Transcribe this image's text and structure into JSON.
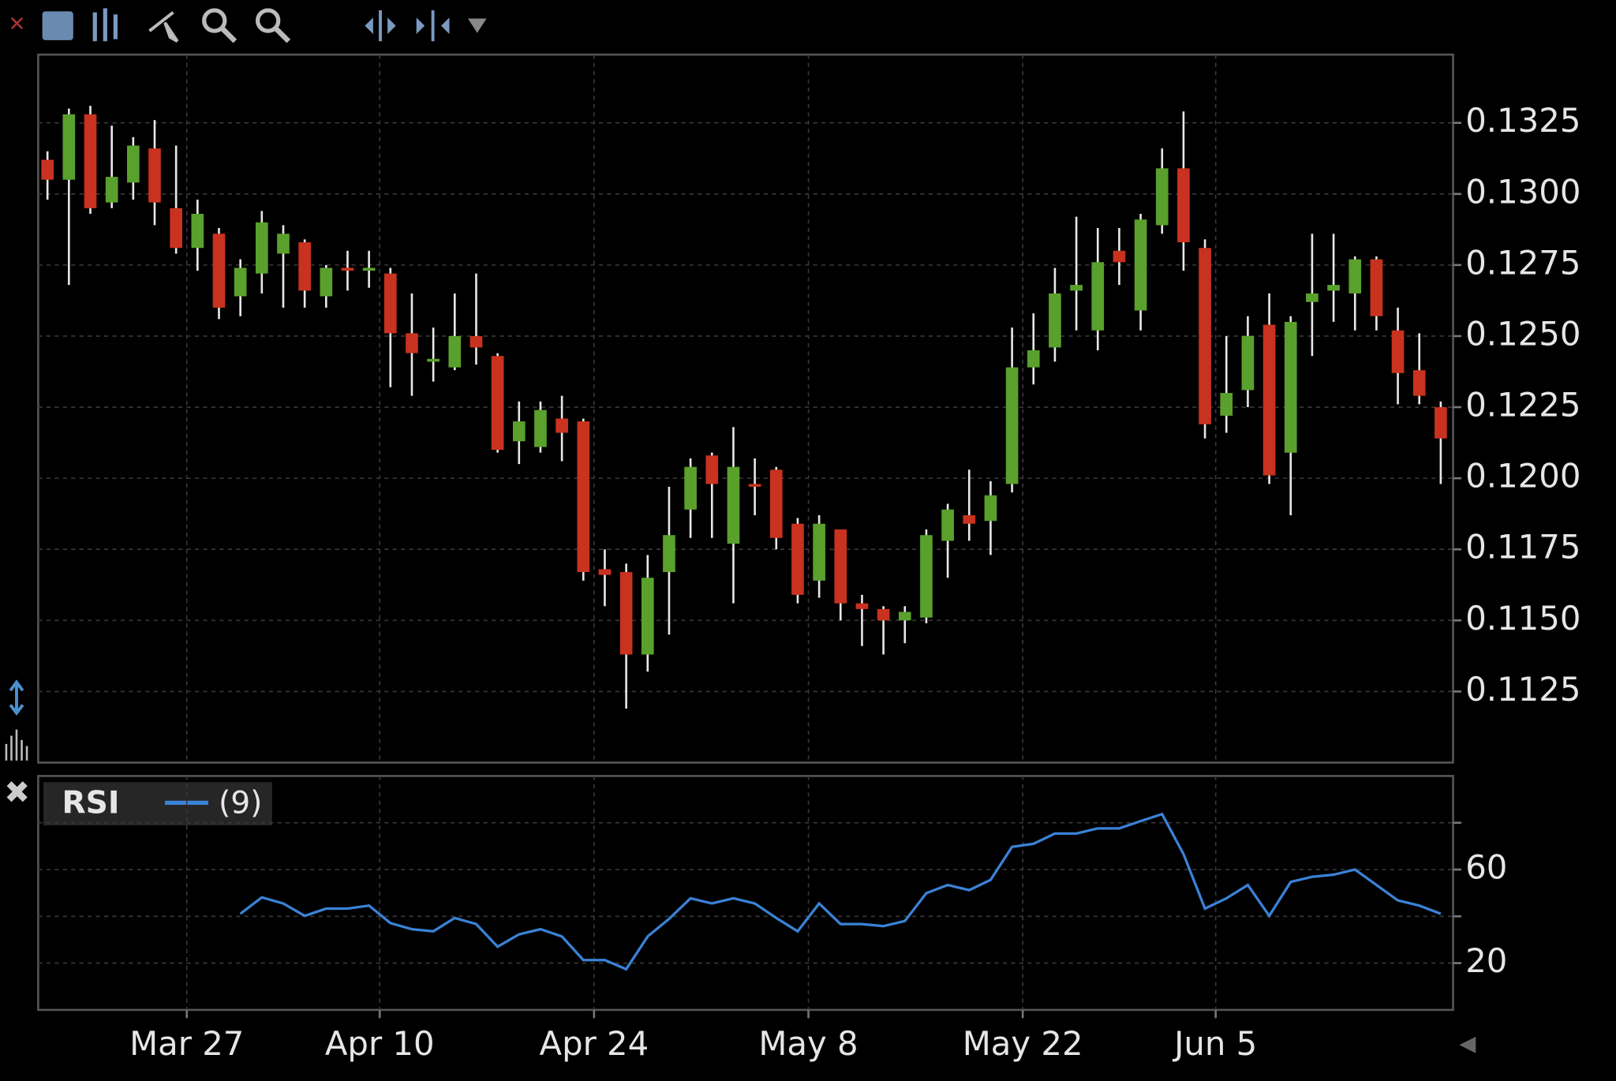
{
  "chart_data": [
    {
      "type": "candlestick",
      "categories": [
        null,
        null,
        null,
        null,
        null,
        null,
        "Mar 27",
        null,
        null,
        null,
        null,
        null,
        null,
        null,
        null,
        "Apr 10",
        null,
        null,
        null,
        null,
        null,
        null,
        null,
        null,
        null,
        "Apr 24",
        null,
        null,
        null,
        null,
        null,
        null,
        null,
        null,
        null,
        "May 8",
        null,
        null,
        null,
        null,
        null,
        null,
        null,
        null,
        null,
        "May 22",
        null,
        null,
        null,
        null,
        null,
        null,
        null,
        null,
        "Jun 5",
        null,
        null,
        null,
        null,
        null,
        null,
        null,
        null,
        null,
        null,
        null
      ],
      "open": [
        0.1312,
        0.1305,
        0.1328,
        0.1297,
        0.1304,
        0.1316,
        0.1295,
        0.1281,
        0.1286,
        0.1264,
        0.1272,
        0.1279,
        0.1283,
        0.1264,
        0.1274,
        0.1273,
        0.1272,
        0.1251,
        0.1241,
        0.1239,
        0.125,
        0.1243,
        0.1213,
        0.1211,
        0.1221,
        0.122,
        0.1168,
        0.1167,
        0.1138,
        0.1167,
        0.1189,
        0.1208,
        0.1177,
        0.1198,
        0.1203,
        0.1184,
        0.1164,
        0.1182,
        0.1156,
        0.1154,
        0.115,
        0.1151,
        0.1178,
        0.1187,
        0.1185,
        0.1198,
        0.1239,
        0.1246,
        0.1266,
        0.1252,
        0.128,
        0.1259,
        0.1289,
        0.1309,
        0.1281,
        0.1222,
        0.1231,
        0.1254,
        0.1209,
        0.1262,
        0.1266,
        0.1265,
        0.1277,
        0.1252,
        0.1238,
        0.1225
      ],
      "high": [
        0.1315,
        0.133,
        0.1331,
        0.1324,
        0.132,
        0.1326,
        0.1317,
        0.1298,
        0.1288,
        0.1277,
        0.1294,
        0.1289,
        0.1284,
        0.1275,
        0.128,
        0.128,
        0.1274,
        0.1265,
        0.1253,
        0.1265,
        0.1272,
        0.1244,
        0.1227,
        0.1227,
        0.1229,
        0.1221,
        0.1175,
        0.117,
        0.1173,
        0.1197,
        0.1207,
        0.1209,
        0.1218,
        0.1207,
        0.1204,
        0.1186,
        0.1187,
        0.1182,
        0.1159,
        0.1155,
        0.1155,
        0.1182,
        0.1191,
        0.1203,
        0.1199,
        0.1253,
        0.1258,
        0.1274,
        0.1292,
        0.1288,
        0.1288,
        0.1293,
        0.1316,
        0.1329,
        0.1284,
        0.125,
        0.1257,
        0.1265,
        0.1257,
        0.1286,
        0.1286,
        0.1278,
        0.1278,
        0.126,
        0.1251,
        0.1227
      ],
      "low": [
        0.1298,
        0.1268,
        0.1293,
        0.1295,
        0.1298,
        0.1289,
        0.1279,
        0.1273,
        0.1256,
        0.1257,
        0.1265,
        0.126,
        0.126,
        0.126,
        0.1266,
        0.1267,
        0.1232,
        0.1229,
        0.1234,
        0.1238,
        0.124,
        0.1209,
        0.1205,
        0.1209,
        0.1206,
        0.1164,
        0.1155,
        0.1119,
        0.1132,
        0.1145,
        0.1179,
        0.1179,
        0.1156,
        0.1187,
        0.1175,
        0.1156,
        0.1158,
        0.115,
        0.1141,
        0.1138,
        0.1142,
        0.1149,
        0.1165,
        0.1178,
        0.1173,
        0.1195,
        0.1233,
        0.1241,
        0.1252,
        0.1245,
        0.1268,
        0.1252,
        0.1286,
        0.1273,
        0.1214,
        0.1216,
        0.1225,
        0.1198,
        0.1187,
        0.1243,
        0.1255,
        0.1252,
        0.1252,
        0.1226,
        0.1226,
        0.1198
      ],
      "close": [
        0.1305,
        0.1328,
        0.1295,
        0.1306,
        0.1317,
        0.1297,
        0.1281,
        0.1293,
        0.126,
        0.1274,
        0.129,
        0.1286,
        0.1266,
        0.1274,
        0.1273,
        0.1274,
        0.1251,
        0.1244,
        0.1242,
        0.125,
        0.1246,
        0.121,
        0.122,
        0.1224,
        0.1216,
        0.1167,
        0.1166,
        0.1138,
        0.1165,
        0.118,
        0.1204,
        0.1198,
        0.1204,
        0.1197,
        0.1179,
        0.1159,
        0.1184,
        0.1156,
        0.1154,
        0.115,
        0.1153,
        0.118,
        0.1189,
        0.1184,
        0.1194,
        0.1239,
        0.1245,
        0.1265,
        0.1268,
        0.1276,
        0.1276,
        0.1291,
        0.1309,
        0.1283,
        0.1219,
        0.123,
        0.125,
        0.1201,
        0.1255,
        0.1265,
        0.1268,
        0.1277,
        0.1257,
        0.1237,
        0.1229,
        0.1214
      ],
      "up_color": "#5aa02c",
      "down_color": "#c8321e",
      "ylim": [
        0.11,
        0.1349
      ],
      "yticks": [
        0.1125,
        {
          "value": 0.115,
          "label": "0.1150"
        },
        0.1175,
        {
          "value": 0.12,
          "label": "0.1200"
        },
        0.1225,
        {
          "value": 0.125,
          "label": "0.1250"
        },
        0.1275,
        {
          "value": 0.13,
          "label": "0.1300"
        },
        0.1325
      ],
      "grid": true
    },
    {
      "type": "line",
      "series": [
        {
          "name": "RSI",
          "label": "(9)",
          "color": "#3a82d6",
          "values": [
            null,
            null,
            null,
            null,
            null,
            null,
            null,
            null,
            null,
            41.1,
            48.1,
            45.5,
            40.2,
            43.3,
            43.3,
            44.6,
            37.1,
            34.5,
            33.6,
            39.3,
            36.7,
            27.0,
            32.3,
            34.5,
            31.4,
            21.3,
            21.3,
            17.4,
            31.4,
            38.9,
            47.7,
            45.5,
            47.7,
            45.5,
            39.3,
            33.6,
            45.5,
            36.7,
            36.7,
            35.8,
            38.0,
            49.9,
            53.4,
            51.2,
            55.6,
            69.7,
            71.0,
            75.4,
            75.4,
            77.6,
            77.6,
            80.7,
            83.7,
            66.6,
            43.3,
            47.7,
            53.4,
            40.2,
            54.7,
            56.9,
            57.8,
            60.0,
            53.4,
            46.8,
            44.6,
            41.1
          ]
        }
      ],
      "ylim": [
        0,
        100
      ],
      "yticks": [
        20,
        {
          "value": 40,
          "label": null
        },
        60,
        {
          "value": 80,
          "label": null
        }
      ],
      "grid": true
    }
  ]
}
